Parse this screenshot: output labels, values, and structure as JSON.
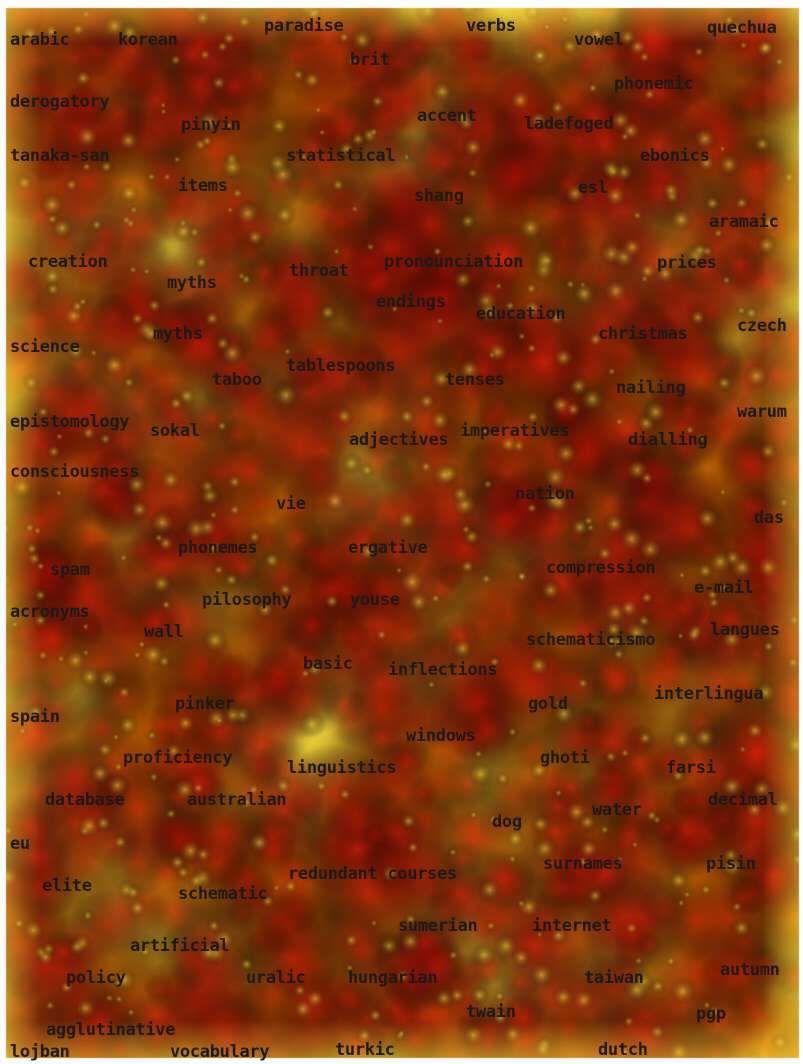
{
  "colors": {
    "background": "#ffffff",
    "cool": "#ffe23c",
    "warm": "#ff7a00",
    "hot": "#e81d08",
    "hottest": "#b50b04",
    "text": "#1a1a1a"
  },
  "terms": [
    "arabic",
    "korean",
    "paradise",
    "verbs",
    "vowel",
    "quechua",
    "brit",
    "phonemic",
    "derogatory",
    "pinyin",
    "accent",
    "ladefoged",
    "tanaka-san",
    "statistical",
    "ebonics",
    "items",
    "shang",
    "esl",
    "aramaic",
    "creation",
    "myths",
    "throat",
    "pronounciation",
    "prices",
    "endings",
    "education",
    "myths",
    "christmas",
    "czech",
    "science",
    "taboo",
    "tablespoons",
    "tenses",
    "nailing",
    "epistomology",
    "sokal",
    "adjectives",
    "imperatives",
    "dialling",
    "warum",
    "consciousness",
    "nation",
    "vie",
    "das",
    "phonemes",
    "ergative",
    "spam",
    "compression",
    "e-mail",
    "acronyms",
    "pilosophy",
    "youse",
    "wall",
    "schematicismo",
    "langues",
    "basic",
    "inflections",
    "pinker",
    "gold",
    "interlingua",
    "spain",
    "windows",
    "proficiency",
    "linguistics",
    "ghoti",
    "farsi",
    "database",
    "australian",
    "water",
    "decimal",
    "dog",
    "eu",
    "surnames",
    "pisin",
    "elite",
    "redundant courses",
    "schematic",
    "sumerian",
    "internet",
    "artificial",
    "policy",
    "uralic",
    "hungarian",
    "taiwan",
    "autumn",
    "twain",
    "pgp",
    "agglutinative",
    "lojban",
    "vocabulary",
    "turkic",
    "dutch"
  ]
}
